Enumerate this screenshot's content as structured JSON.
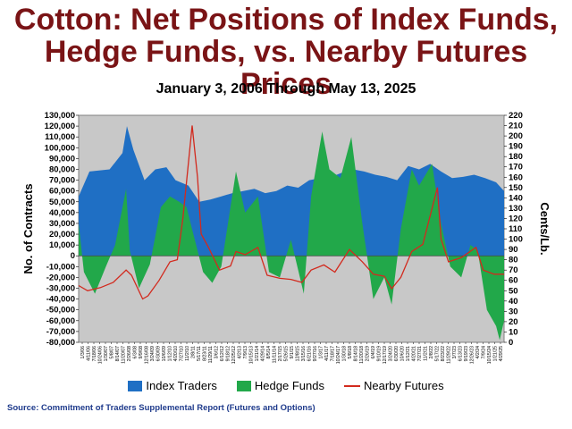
{
  "header": {
    "title_line1": "Cotton:  Net Positions of Index Funds,",
    "title_line2": "Hedge Funds, vs. Nearby Futures Prices",
    "subtitle": "January 3, 2006 Through May 13, 2025"
  },
  "source": "Source: Commitment of Traders Supplemental Report (Futures and Options)",
  "chart_data": {
    "type": "area",
    "ylabel_left": "No. of Contracts",
    "ylabel_right": "Cents/Lb.",
    "y_left_range": [
      -80000,
      130000
    ],
    "y_left_step": 10000,
    "y_right_range": [
      0,
      220
    ],
    "y_right_step": 10,
    "x_range": [
      "2006-01-03",
      "2025-05-13"
    ],
    "x_tick_labels": [
      "1/3/06",
      "4/11/06",
      "7/18/06",
      "10/24/06",
      "1/30/07",
      "5/8/07",
      "8/14/07",
      "11/20/07",
      "2/26/08",
      "6/3/08",
      "9/9/08",
      "12/16/08",
      "3/24/09",
      "6/30/09",
      "10/6/09",
      "1/12/10",
      "4/20/10",
      "7/27/10",
      "11/2/10",
      "2/8/11",
      "5/17/11",
      "8/23/11",
      "11/29/11",
      "3/6/12",
      "6/12/12",
      "9/18/12",
      "12/25/12",
      "4/2/13",
      "7/9/13",
      "10/15/13",
      "1/21/14",
      "4/29/14",
      "8/5/14",
      "11/11/14",
      "2/17/15",
      "5/26/15",
      "9/1/15",
      "12/8/15",
      "3/15/16",
      "6/21/16",
      "9/27/16",
      "1/3/17",
      "4/11/17",
      "7/18/17",
      "10/24/17",
      "1/30/18",
      "5/8/18",
      "8/14/18",
      "11/20/18",
      "2/26/19",
      "6/4/19",
      "9/10/19",
      "12/17/19",
      "3/24/20",
      "6/30/20",
      "10/6/20",
      "1/12/21",
      "4/20/21",
      "7/27/21",
      "11/2/21",
      "2/8/22",
      "5/17/22",
      "8/23/22",
      "11/29/22",
      "3/7/23",
      "6/13/23",
      "9/19/23",
      "12/26/23",
      "4/2/24",
      "7/9/24",
      "10/15/24",
      "1/21/25",
      "4/29/25"
    ],
    "grid": false,
    "legend_position": "bottom",
    "series": [
      {
        "name": "Index Traders",
        "color": "#1f6fc4",
        "points": [
          [
            "2006-01-03",
            55000
          ],
          [
            "2006-07-01",
            78000
          ],
          [
            "2007-06-01",
            80000
          ],
          [
            "2008-01-01",
            95000
          ],
          [
            "2008-03-15",
            120000
          ],
          [
            "2008-07-01",
            98000
          ],
          [
            "2009-01-01",
            70000
          ],
          [
            "2009-07-01",
            80000
          ],
          [
            "2010-01-01",
            82000
          ],
          [
            "2010-06-01",
            70000
          ],
          [
            "2011-01-01",
            65000
          ],
          [
            "2011-07-01",
            50000
          ],
          [
            "2012-01-01",
            52000
          ],
          [
            "2012-07-01",
            55000
          ],
          [
            "2013-01-01",
            58000
          ],
          [
            "2013-07-01",
            60000
          ],
          [
            "2014-01-01",
            62000
          ],
          [
            "2014-07-01",
            58000
          ],
          [
            "2015-01-01",
            60000
          ],
          [
            "2015-07-01",
            65000
          ],
          [
            "2016-01-01",
            63000
          ],
          [
            "2016-07-01",
            70000
          ],
          [
            "2017-01-01",
            72000
          ],
          [
            "2017-07-01",
            73000
          ],
          [
            "2018-01-01",
            77000
          ],
          [
            "2018-07-01",
            80000
          ],
          [
            "2019-01-01",
            78000
          ],
          [
            "2019-07-01",
            75000
          ],
          [
            "2020-01-01",
            73000
          ],
          [
            "2020-07-01",
            70000
          ],
          [
            "2021-01-01",
            83000
          ],
          [
            "2021-07-01",
            80000
          ],
          [
            "2022-01-01",
            85000
          ],
          [
            "2022-07-01",
            78000
          ],
          [
            "2023-01-01",
            72000
          ],
          [
            "2023-07-01",
            73000
          ],
          [
            "2024-01-01",
            75000
          ],
          [
            "2024-07-01",
            72000
          ],
          [
            "2025-01-01",
            68000
          ],
          [
            "2025-05-13",
            60000
          ]
        ]
      },
      {
        "name": "Hedge Funds",
        "color": "#22a84a",
        "points": [
          [
            "2006-01-03",
            30000
          ],
          [
            "2006-04-01",
            -15000
          ],
          [
            "2006-10-01",
            -35000
          ],
          [
            "2007-04-01",
            -10000
          ],
          [
            "2007-09-01",
            10000
          ],
          [
            "2008-03-01",
            62000
          ],
          [
            "2008-05-01",
            5000
          ],
          [
            "2008-10-01",
            -30000
          ],
          [
            "2009-04-01",
            -8000
          ],
          [
            "2009-10-01",
            45000
          ],
          [
            "2010-03-01",
            55000
          ],
          [
            "2010-08-01",
            50000
          ],
          [
            "2010-12-01",
            45000
          ],
          [
            "2011-03-01",
            25000
          ],
          [
            "2011-09-01",
            -15000
          ],
          [
            "2012-02-01",
            -25000
          ],
          [
            "2012-07-01",
            -10000
          ],
          [
            "2013-03-01",
            78000
          ],
          [
            "2013-08-01",
            40000
          ],
          [
            "2014-03-01",
            55000
          ],
          [
            "2014-09-01",
            -15000
          ],
          [
            "2015-03-01",
            -20000
          ],
          [
            "2015-09-01",
            15000
          ],
          [
            "2016-04-01",
            -35000
          ],
          [
            "2016-08-01",
            55000
          ],
          [
            "2017-02-01",
            115000
          ],
          [
            "2017-06-01",
            80000
          ],
          [
            "2017-12-01",
            72000
          ],
          [
            "2018-06-01",
            110000
          ],
          [
            "2018-12-01",
            30000
          ],
          [
            "2019-06-01",
            -40000
          ],
          [
            "2019-12-01",
            -20000
          ],
          [
            "2020-04-01",
            -45000
          ],
          [
            "2020-09-01",
            25000
          ],
          [
            "2021-03-01",
            80000
          ],
          [
            "2021-07-01",
            65000
          ],
          [
            "2022-02-01",
            85000
          ],
          [
            "2022-07-01",
            30000
          ],
          [
            "2022-12-01",
            -10000
          ],
          [
            "2023-06-01",
            -20000
          ],
          [
            "2023-11-01",
            10000
          ],
          [
            "2024-03-01",
            5000
          ],
          [
            "2024-08-01",
            -50000
          ],
          [
            "2025-01-01",
            -65000
          ],
          [
            "2025-03-01",
            -78000
          ],
          [
            "2025-05-13",
            -60000
          ]
        ]
      },
      {
        "name": "Nearby Futures",
        "color": "#d22a1e",
        "points": [
          [
            "2006-01-03",
            55
          ],
          [
            "2006-06-01",
            50
          ],
          [
            "2007-01-01",
            53
          ],
          [
            "2007-08-01",
            58
          ],
          [
            "2008-03-01",
            70
          ],
          [
            "2008-06-01",
            65
          ],
          [
            "2008-12-01",
            42
          ],
          [
            "2009-03-01",
            45
          ],
          [
            "2009-09-01",
            60
          ],
          [
            "2010-03-01",
            78
          ],
          [
            "2010-07-01",
            80
          ],
          [
            "2010-10-01",
            120
          ],
          [
            "2011-03-04",
            210
          ],
          [
            "2011-06-01",
            160
          ],
          [
            "2011-08-01",
            105
          ],
          [
            "2011-12-01",
            92
          ],
          [
            "2012-06-01",
            70
          ],
          [
            "2012-12-01",
            74
          ],
          [
            "2013-03-01",
            88
          ],
          [
            "2013-08-01",
            85
          ],
          [
            "2014-03-01",
            92
          ],
          [
            "2014-08-01",
            65
          ],
          [
            "2015-03-01",
            62
          ],
          [
            "2015-09-01",
            61
          ],
          [
            "2016-03-01",
            58
          ],
          [
            "2016-08-01",
            70
          ],
          [
            "2017-03-01",
            75
          ],
          [
            "2017-09-01",
            68
          ],
          [
            "2018-05-01",
            90
          ],
          [
            "2018-12-01",
            78
          ],
          [
            "2019-06-01",
            66
          ],
          [
            "2019-12-01",
            64
          ],
          [
            "2020-04-01",
            52
          ],
          [
            "2020-09-01",
            63
          ],
          [
            "2021-03-01",
            88
          ],
          [
            "2021-09-01",
            95
          ],
          [
            "2022-05-01",
            150
          ],
          [
            "2022-07-01",
            100
          ],
          [
            "2022-11-01",
            78
          ],
          [
            "2023-06-01",
            82
          ],
          [
            "2024-02-01",
            92
          ],
          [
            "2024-06-01",
            70
          ],
          [
            "2024-12-01",
            66
          ],
          [
            "2025-05-13",
            66
          ]
        ]
      }
    ],
    "legend": [
      {
        "label": "Index Traders",
        "kind": "area",
        "color": "#1f6fc4"
      },
      {
        "label": "Hedge Funds",
        "kind": "area",
        "color": "#22a84a"
      },
      {
        "label": "Nearby Futures",
        "kind": "line",
        "color": "#d22a1e"
      }
    ]
  }
}
